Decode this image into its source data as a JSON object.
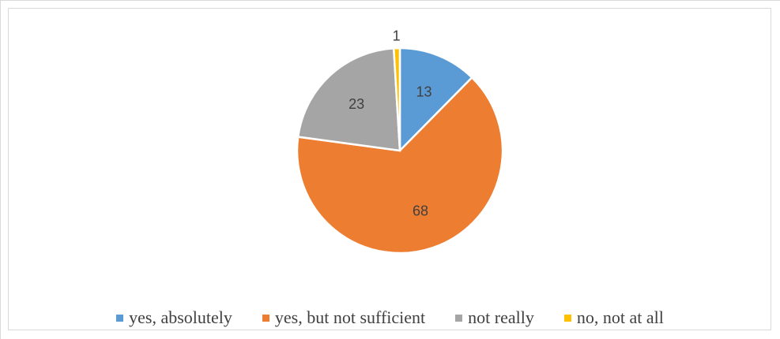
{
  "chart_data": {
    "type": "pie",
    "title": "",
    "categories": [
      "yes, absolutely",
      "yes, but not sufficient",
      "not really",
      "no, not at all"
    ],
    "values": [
      13,
      68,
      23,
      1
    ],
    "colors": [
      "#5b9bd5",
      "#ed7d31",
      "#a5a5a5",
      "#ffc000"
    ],
    "data_labels": [
      "13",
      "68",
      "23",
      "1"
    ],
    "legend_position": "bottom"
  }
}
